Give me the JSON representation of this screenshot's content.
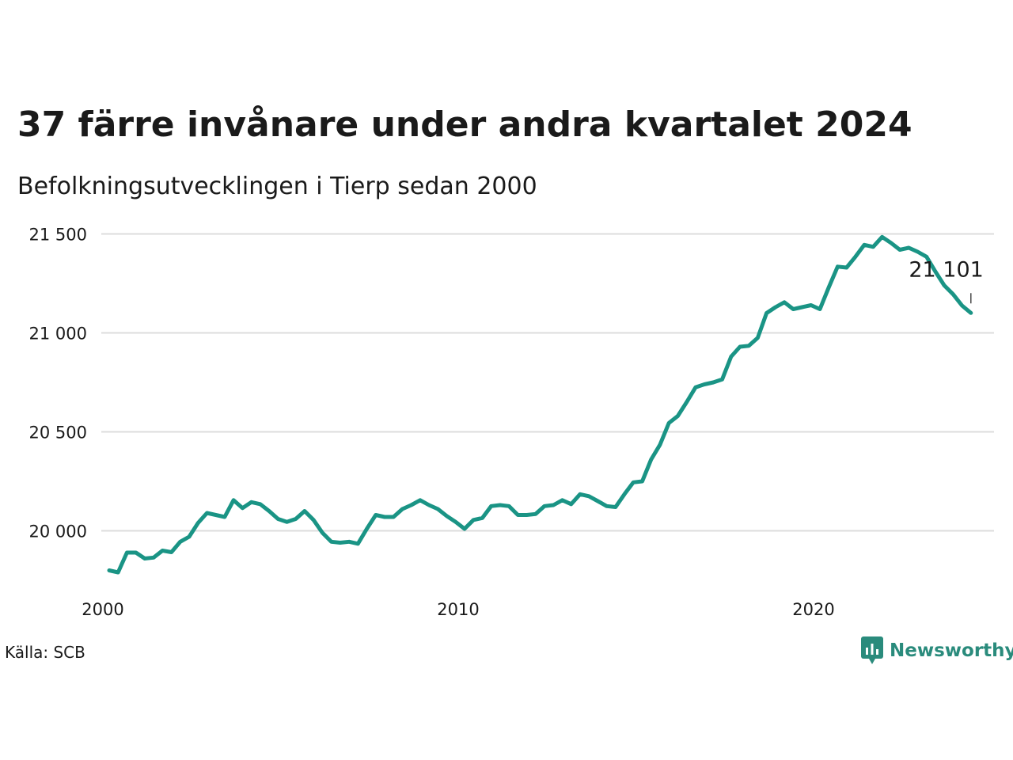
{
  "title": "37 färre invånare under andra kvartalet 2024",
  "subtitle": "Befolkningsutvecklingen i Tierp sedan 2000",
  "source": "Källa: SCB",
  "brand": "Newsworthy",
  "colors": {
    "line": "#1a9485",
    "grid": "#dcdcdc",
    "text": "#1a1a1a",
    "brand": "#2a8b7c"
  },
  "chart_data": {
    "type": "line",
    "title": "37 färre invånare under andra kvartalet 2024",
    "subtitle": "Befolkningsutvecklingen i Tierp sedan 2000",
    "xlabel": "",
    "ylabel": "",
    "grid": "horizontal",
    "xlim": [
      2000.0,
      2025.0
    ],
    "ylim": [
      19800,
      21550
    ],
    "y_ticks": [
      20000,
      20500,
      21000,
      21500
    ],
    "y_tick_labels": [
      "20 000",
      "20 500",
      "21 000",
      "21 500"
    ],
    "x_ticks": [
      2000,
      2010,
      2020
    ],
    "x_tick_labels": [
      "2000",
      "2010",
      "2020"
    ],
    "end_label": "21 101",
    "series": [
      {
        "x": [
          2000.0,
          2000.25,
          2000.5,
          2000.75,
          2001.0,
          2001.25,
          2001.5,
          2001.75,
          2002.0,
          2002.25,
          2002.5,
          2002.75,
          2003.0,
          2003.25,
          2003.5,
          2003.75,
          2004.0,
          2004.25,
          2004.5,
          2004.75,
          2005.0,
          2005.25,
          2005.5,
          2005.75,
          2006.0,
          2006.25,
          2006.5,
          2006.75,
          2007.0,
          2007.25,
          2007.5,
          2007.75,
          2008.0,
          2008.25,
          2008.5,
          2008.75,
          2009.0,
          2009.25,
          2009.5,
          2009.75,
          2010.0,
          2010.25,
          2010.5,
          2010.75,
          2011.0,
          2011.25,
          2011.5,
          2011.75,
          2012.0,
          2012.25,
          2012.5,
          2012.75,
          2013.0,
          2013.25,
          2013.5,
          2013.75,
          2014.0,
          2014.25,
          2014.5,
          2014.75,
          2015.0,
          2015.25,
          2015.5,
          2015.75,
          2016.0,
          2016.25,
          2016.5,
          2016.75,
          2017.0,
          2017.25,
          2017.5,
          2017.75,
          2018.0,
          2018.25,
          2018.5,
          2018.75,
          2019.0,
          2019.25,
          2019.5,
          2019.75,
          2020.0,
          2020.25,
          2020.5,
          2020.75,
          2021.0,
          2021.25,
          2021.5,
          2021.75,
          2022.0,
          2022.25,
          2022.5,
          2022.75,
          2023.0,
          2023.25,
          2023.5,
          2023.75,
          2024.0,
          2024.25
        ],
        "values": [
          19800,
          19790,
          19890,
          19890,
          19860,
          19865,
          19900,
          19892,
          19945,
          19970,
          20040,
          20090,
          20080,
          20070,
          20155,
          20115,
          20145,
          20135,
          20100,
          20060,
          20045,
          20060,
          20100,
          20055,
          19990,
          19945,
          19940,
          19945,
          19935,
          20010,
          20080,
          20070,
          20070,
          20110,
          20130,
          20155,
          20130,
          20110,
          20075,
          20045,
          20010,
          20055,
          20065,
          20125,
          20130,
          20125,
          20080,
          20080,
          20085,
          20125,
          20130,
          20155,
          20135,
          20185,
          20175,
          20150,
          20125,
          20120,
          20185,
          20245,
          20250,
          20360,
          20435,
          20545,
          20580,
          20650,
          20725,
          20740,
          20750,
          20765,
          20880,
          20930,
          20935,
          20975,
          21100,
          21130,
          21155,
          21120,
          21130,
          21140,
          21120,
          21230,
          21335,
          21330,
          21385,
          21445,
          21435,
          21485,
          21455,
          21420,
          21430,
          21410,
          21385,
          21310,
          21240,
          21195,
          21138,
          21101
        ]
      }
    ]
  }
}
